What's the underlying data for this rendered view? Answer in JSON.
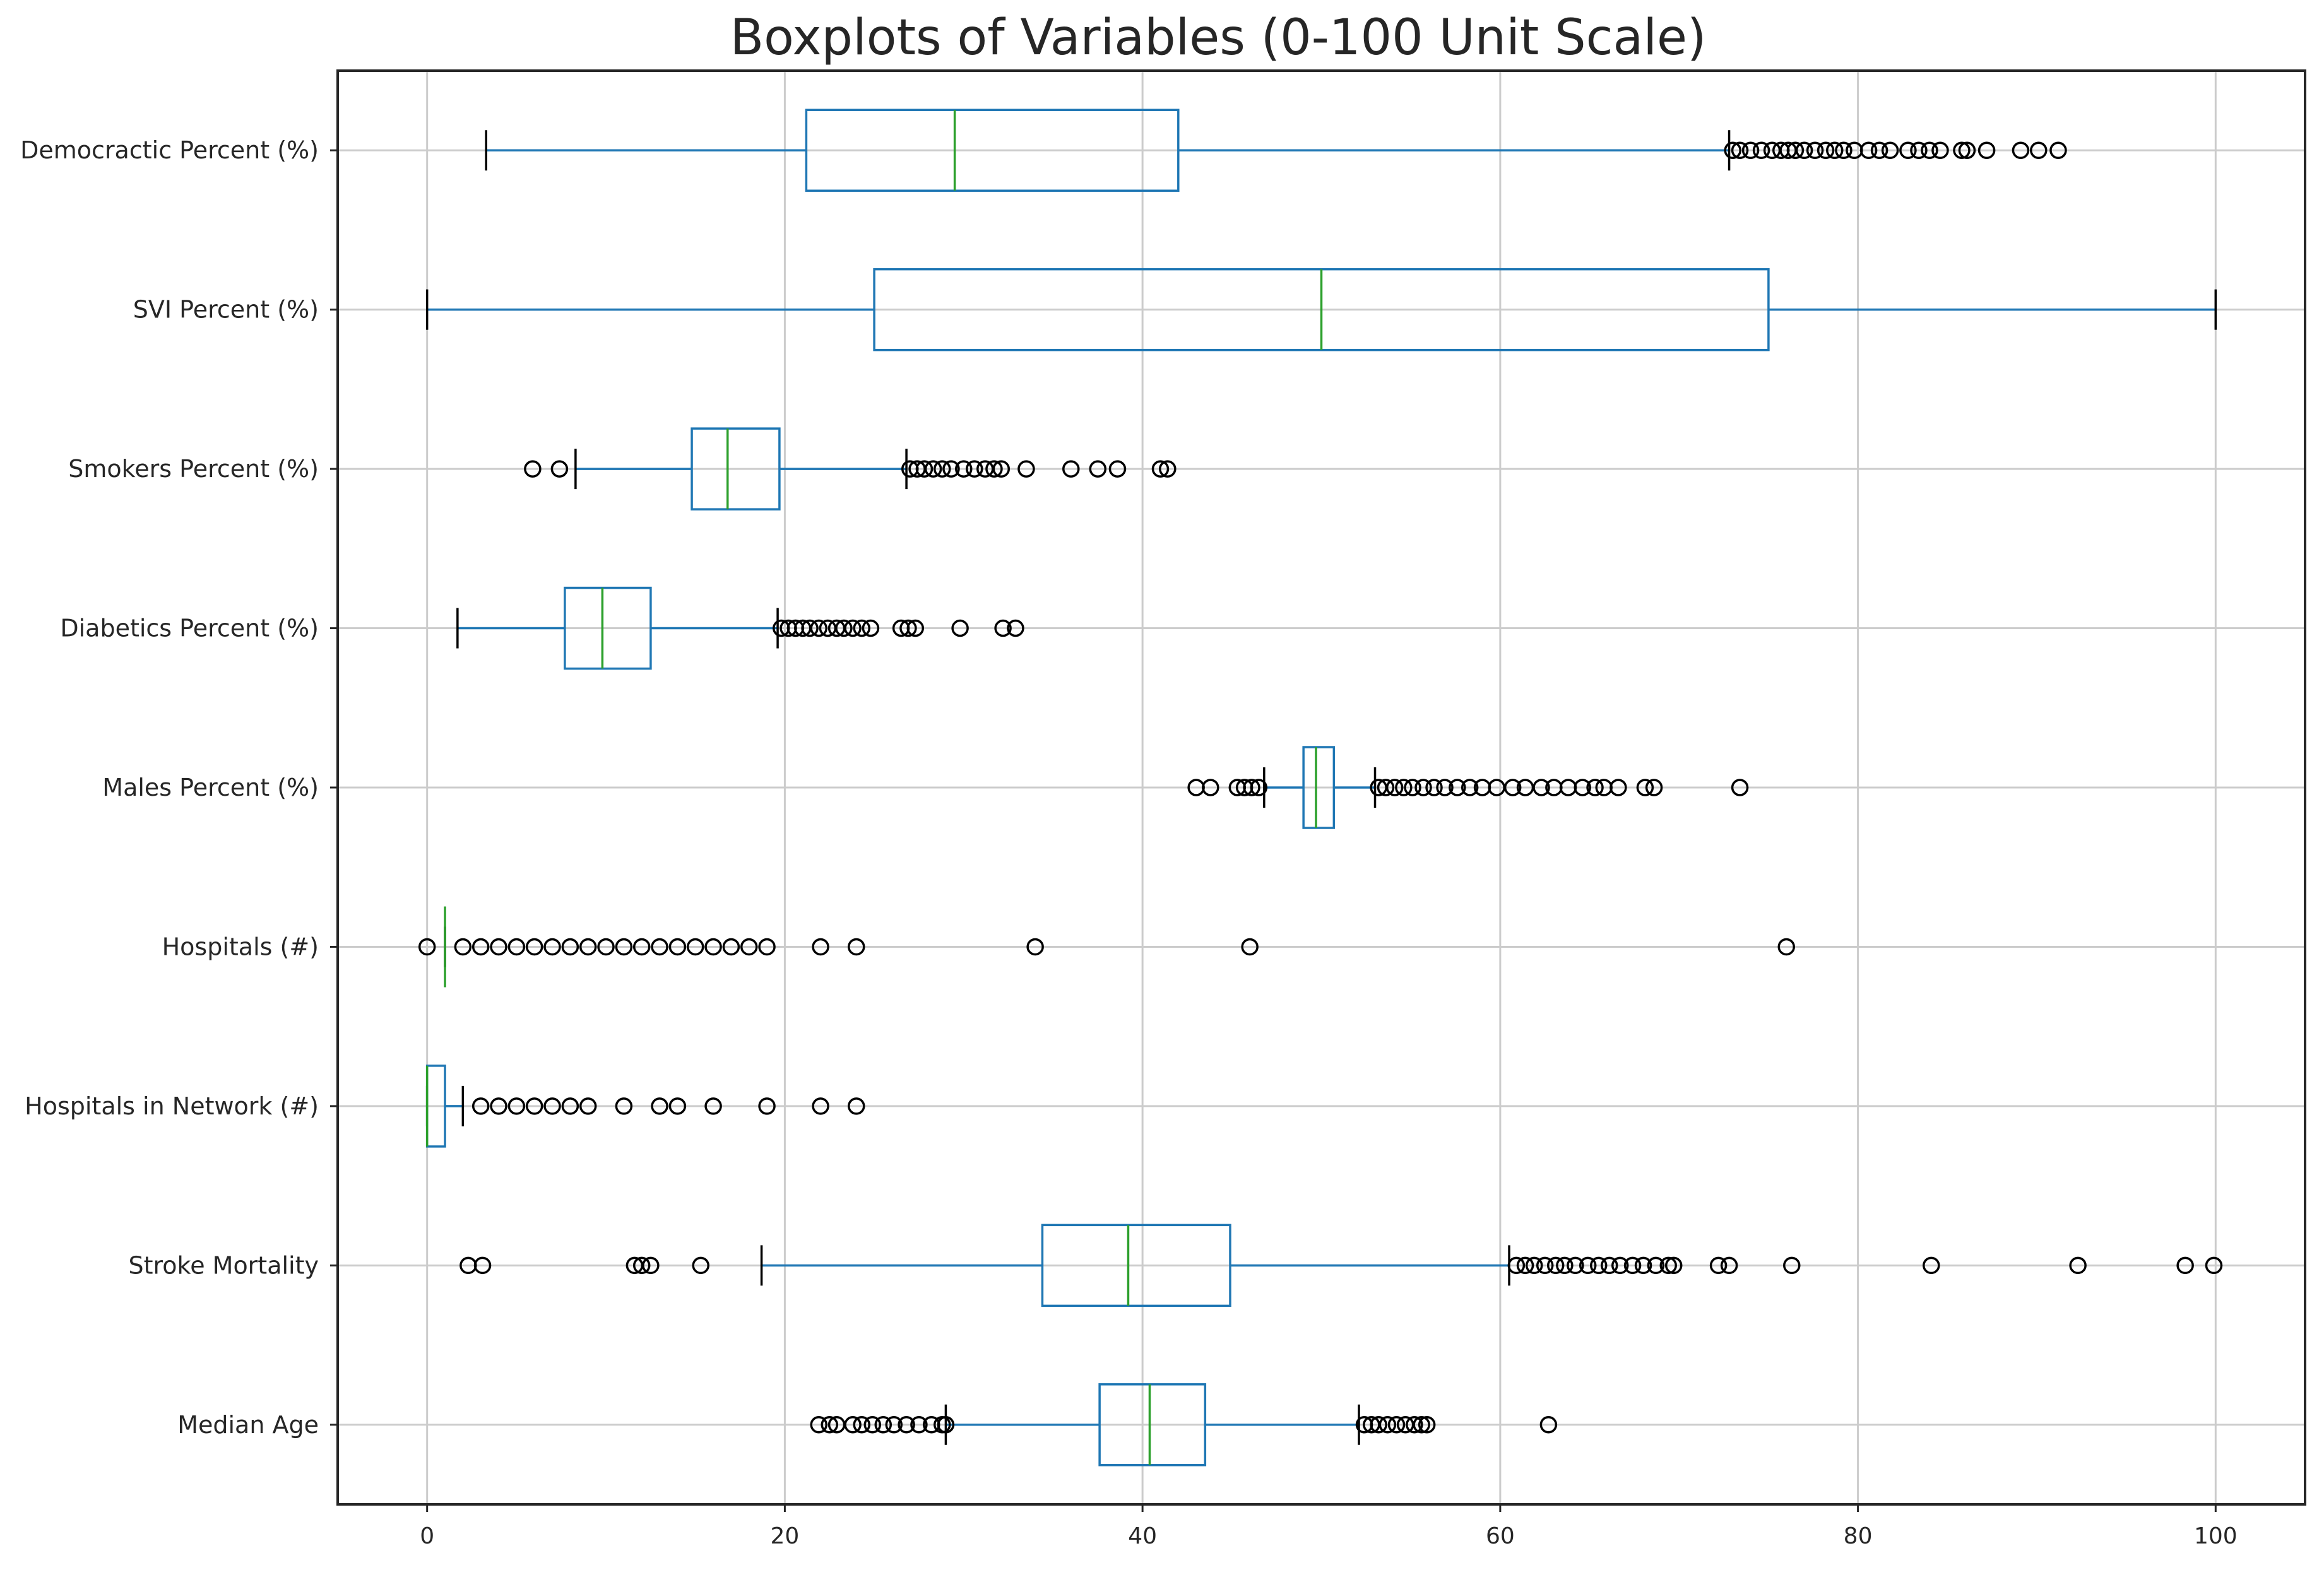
{
  "chart_data": {
    "type": "boxplot",
    "orientation": "horizontal",
    "title": "Boxplots of Variables (0-100 Unit Scale)",
    "xlabel": "",
    "ylabel": "",
    "xlim": [
      -5,
      105
    ],
    "xticks": [
      0,
      20,
      40,
      60,
      80,
      100
    ],
    "grid": true,
    "colors": {
      "box": "#1f77b4",
      "median": "#2ca02c",
      "whisker": "#1f77b4",
      "cap": "#000000",
      "flier": "#000000",
      "grid": "#cccccc",
      "text": "#262626"
    },
    "series": [
      {
        "name": "Democractic Percent (%)",
        "whislo": 3.3,
        "q1": 21.2,
        "med": 29.5,
        "q3": 42.0,
        "whishi": 72.8,
        "fliers": [
          73.0,
          73.4,
          74.0,
          74.6,
          75.2,
          75.7,
          76.1,
          76.5,
          77.0,
          77.6,
          78.2,
          78.7,
          79.2,
          79.8,
          80.6,
          81.2,
          81.8,
          82.8,
          83.4,
          84.0,
          84.6,
          85.8,
          86.1,
          87.2,
          89.1,
          90.1,
          91.2
        ]
      },
      {
        "name": "SVI Percent (%)",
        "whislo": 0.0,
        "q1": 25.0,
        "med": 50.0,
        "q3": 75.0,
        "whishi": 100.0,
        "fliers": []
      },
      {
        "name": "Smokers Percent (%)",
        "whislo": 8.3,
        "q1": 14.8,
        "med": 16.8,
        "q3": 19.7,
        "whishi": 26.8,
        "fliers": [
          5.9,
          7.4,
          27.0,
          27.4,
          27.8,
          28.3,
          28.8,
          29.3,
          30.0,
          30.6,
          31.2,
          31.7,
          32.1,
          33.5,
          36.0,
          37.5,
          38.6,
          41.0,
          41.4
        ]
      },
      {
        "name": "Diabetics Percent (%)",
        "whislo": 1.7,
        "q1": 7.7,
        "med": 9.8,
        "q3": 12.5,
        "whishi": 19.6,
        "fliers": [
          19.8,
          20.2,
          20.6,
          21.0,
          21.4,
          21.9,
          22.4,
          22.9,
          23.3,
          23.8,
          24.3,
          24.8,
          26.5,
          26.9,
          27.3,
          29.8,
          32.2,
          32.9
        ]
      },
      {
        "name": "Males Percent (%)",
        "whislo": 46.8,
        "q1": 49.0,
        "med": 49.7,
        "q3": 50.7,
        "whishi": 53.0,
        "fliers": [
          43.0,
          43.8,
          45.3,
          45.7,
          46.1,
          46.5,
          53.2,
          53.6,
          54.1,
          54.6,
          55.1,
          55.7,
          56.3,
          56.9,
          57.6,
          58.3,
          59.0,
          59.8,
          60.7,
          61.4,
          62.3,
          63.0,
          63.8,
          64.6,
          65.3,
          65.8,
          66.6,
          68.1,
          68.6,
          73.4
        ]
      },
      {
        "name": "Hospitals (#)",
        "whislo": 1.0,
        "q1": 1.0,
        "med": 1.0,
        "q3": 1.0,
        "whishi": 1.0,
        "fliers": [
          0,
          2,
          3,
          4,
          5,
          6,
          7,
          8,
          9,
          10,
          11,
          12,
          13,
          14,
          15,
          16,
          17,
          18,
          19,
          22,
          24,
          34,
          46,
          76
        ]
      },
      {
        "name": "Hospitals in Network (#)",
        "whislo": 0.0,
        "q1": 0.0,
        "med": 0.0,
        "q3": 1.0,
        "whishi": 2.0,
        "fliers": [
          3,
          4,
          5,
          6,
          7,
          8,
          9,
          11,
          13,
          14,
          16,
          19,
          22,
          24
        ]
      },
      {
        "name": "Stroke Mortality",
        "whislo": 18.7,
        "q1": 34.4,
        "med": 39.2,
        "q3": 44.9,
        "whishi": 60.5,
        "fliers": [
          2.3,
          3.1,
          11.6,
          12.0,
          12.5,
          15.3,
          60.9,
          61.4,
          61.9,
          62.5,
          63.1,
          63.6,
          64.2,
          64.9,
          65.5,
          66.1,
          66.7,
          67.4,
          68.0,
          68.7,
          69.4,
          69.7,
          72.2,
          72.8,
          76.3,
          84.1,
          92.3,
          98.3,
          99.9
        ]
      },
      {
        "name": "Median Age",
        "whislo": 29.0,
        "q1": 37.6,
        "med": 40.4,
        "q3": 43.5,
        "whishi": 52.1,
        "fliers": [
          21.9,
          22.5,
          22.9,
          23.8,
          24.3,
          24.9,
          25.5,
          26.1,
          26.8,
          27.5,
          28.2,
          28.8,
          29.0,
          52.4,
          52.8,
          53.2,
          53.7,
          54.2,
          54.7,
          55.2,
          55.6,
          55.9,
          62.7
        ]
      }
    ]
  }
}
